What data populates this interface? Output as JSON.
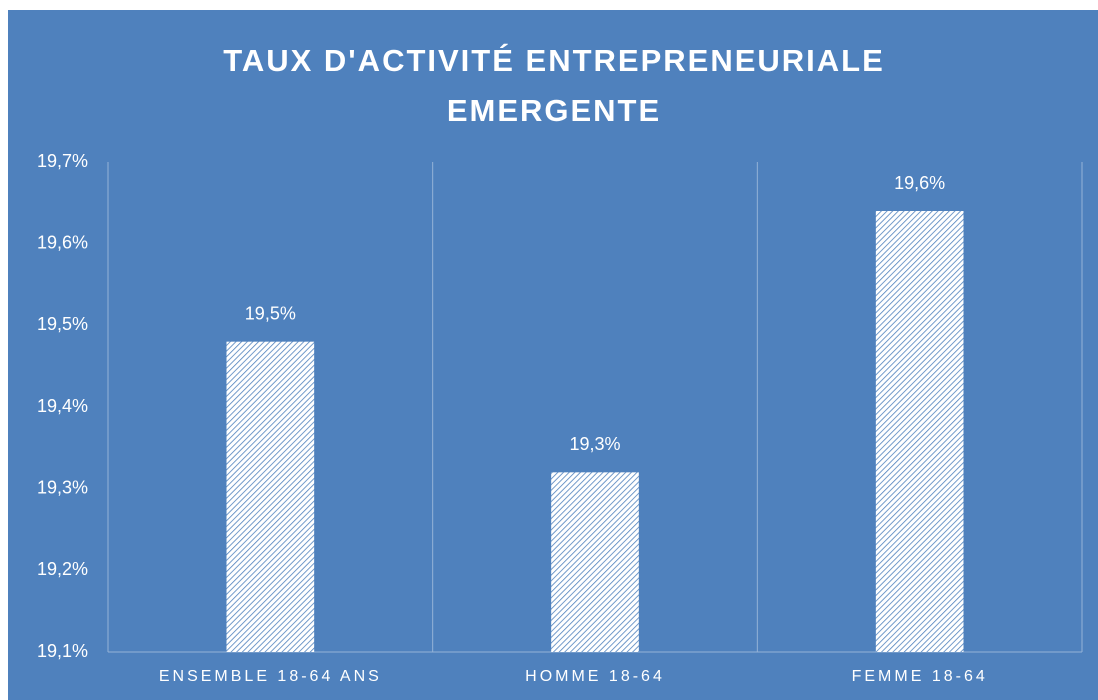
{
  "chart_data": {
    "type": "bar",
    "title": "TAUX D'ACTIVITÉ ENTREPRENEURIALE EMERGENTE",
    "categories": [
      "ENSEMBLE 18-64 ANS",
      "HOMME 18-64",
      "FEMME 18-64"
    ],
    "values": [
      19.48,
      19.32,
      19.64
    ],
    "value_labels": [
      "19,5%",
      "19,3%",
      "19,6%"
    ],
    "color": "#ffffff",
    "ylim": [
      19.1,
      19.7
    ],
    "yticks": [
      {
        "value": 19.1,
        "label": "19,1%"
      },
      {
        "value": 19.2,
        "label": "19,2%"
      },
      {
        "value": 19.3,
        "label": "19,3%"
      },
      {
        "value": 19.4,
        "label": "19,4%"
      },
      {
        "value": 19.5,
        "label": "19,5%"
      },
      {
        "value": 19.6,
        "label": "19,6%"
      },
      {
        "value": 19.7,
        "label": "19,7%"
      }
    ],
    "grid": false
  }
}
